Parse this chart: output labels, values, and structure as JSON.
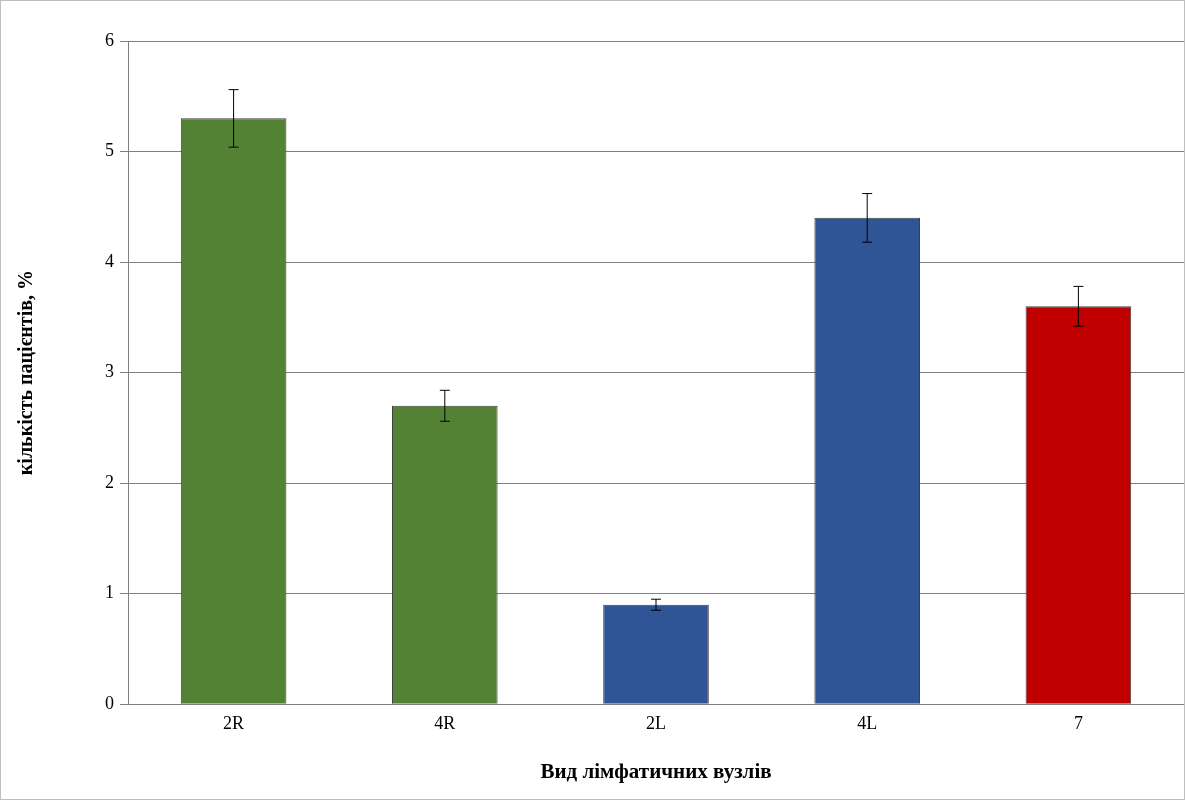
{
  "chart_data": {
    "type": "bar",
    "xlabel": "Вид лімфатичних вузлів",
    "ylabel": "кількість пацієнтів, %",
    "categories": [
      "2R",
      "4R",
      "2L",
      "4L",
      "7"
    ],
    "values": [
      5.3,
      2.7,
      0.9,
      4.4,
      3.6
    ],
    "colors": [
      "#548235",
      "#548235",
      "#2f5597",
      "#2f5597",
      "#c00000"
    ],
    "errors": [
      0.26,
      0.14,
      0.05,
      0.22,
      0.18
    ],
    "ylim": [
      0,
      6
    ],
    "yticks": [
      0,
      1,
      2,
      3,
      4,
      5,
      6
    ],
    "grid": "y",
    "legend": false
  }
}
